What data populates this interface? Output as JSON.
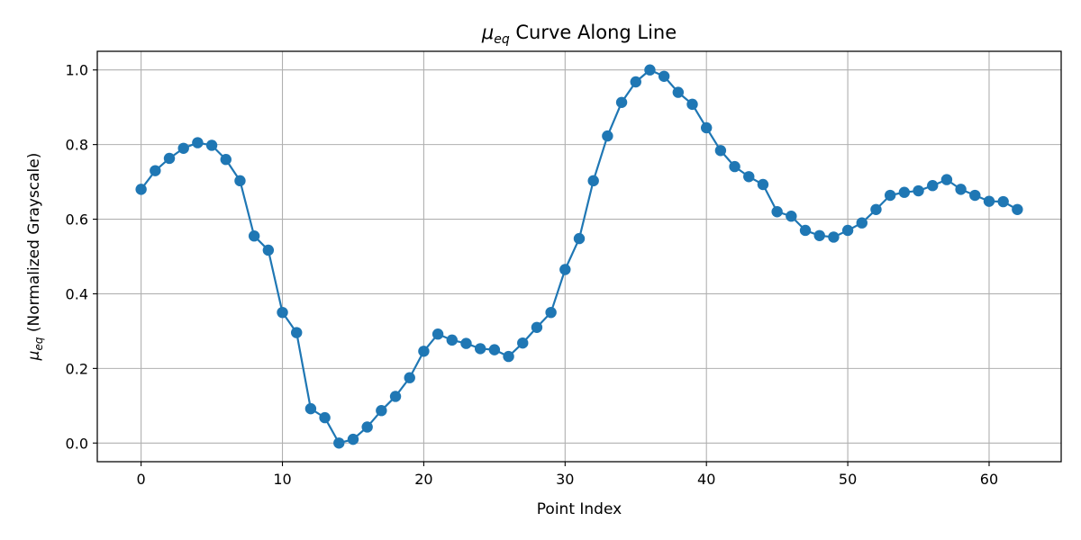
{
  "chart_data": {
    "type": "line",
    "title": {
      "symbol": "μ",
      "subscript": "eq",
      "rest": " Curve Along Line"
    },
    "xlabel": "Point Index",
    "ylabel": {
      "symbol": "μ",
      "subscript": "eq",
      "rest": " (Normalized Grayscale)"
    },
    "xlim": [
      -3.1,
      65.1
    ],
    "ylim": [
      -0.05,
      1.05
    ],
    "xticks": [
      0,
      10,
      20,
      30,
      40,
      50,
      60
    ],
    "yticks": [
      0.0,
      0.2,
      0.4,
      0.6,
      0.8,
      1.0
    ],
    "ytick_labels": [
      "0.0",
      "0.2",
      "0.4",
      "0.6",
      "0.8",
      "1.0"
    ],
    "grid": true,
    "marker": "circle",
    "series": [
      {
        "color": "#1f77b4",
        "x": [
          0,
          1,
          2,
          3,
          4,
          5,
          6,
          7,
          8,
          9,
          10,
          11,
          12,
          13,
          14,
          15,
          16,
          17,
          18,
          19,
          20,
          21,
          22,
          23,
          24,
          25,
          26,
          27,
          28,
          29,
          30,
          31,
          32,
          33,
          34,
          35,
          36,
          37,
          38,
          39,
          40,
          41,
          42,
          43,
          44,
          45,
          46,
          47,
          48,
          49,
          50,
          51,
          52,
          53,
          54,
          55,
          56,
          57,
          58,
          59,
          60,
          61,
          62
        ],
        "y": [
          0.68,
          0.73,
          0.763,
          0.79,
          0.805,
          0.798,
          0.76,
          0.703,
          0.555,
          0.517,
          0.35,
          0.296,
          0.092,
          0.068,
          0.0,
          0.01,
          0.043,
          0.087,
          0.125,
          0.175,
          0.246,
          0.292,
          0.276,
          0.267,
          0.253,
          0.25,
          0.232,
          0.268,
          0.31,
          0.35,
          0.465,
          0.548,
          0.703,
          0.823,
          0.913,
          0.968,
          1.0,
          0.983,
          0.94,
          0.908,
          0.845,
          0.784,
          0.741,
          0.714,
          0.693,
          0.62,
          0.608,
          0.57,
          0.556,
          0.552,
          0.57,
          0.59,
          0.626,
          0.664,
          0.672,
          0.676,
          0.69,
          0.706,
          0.68,
          0.664,
          0.648,
          0.647,
          0.626
        ]
      }
    ]
  }
}
